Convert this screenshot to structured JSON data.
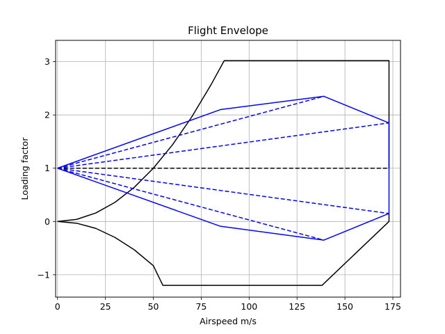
{
  "chart_data": {
    "type": "line",
    "title": "Flight Envelope",
    "xlabel": "Airspeed m/s",
    "ylabel": "Loading factor",
    "xlim": [
      -1,
      179
    ],
    "ylim": [
      -1.42,
      3.4
    ],
    "xticks": [
      0,
      25,
      50,
      75,
      100,
      125,
      150,
      175
    ],
    "yticks": [
      -1,
      0,
      1,
      2,
      3
    ],
    "ytick_labels": [
      "−1",
      "0",
      "1",
      "2",
      "3"
    ],
    "grid": true,
    "series": [
      {
        "color": "#000000",
        "style": "solid",
        "x": [
          0,
          10,
          20,
          30,
          40,
          50,
          60,
          70,
          80,
          87,
          138,
          173,
          173
        ],
        "y": [
          0,
          0.04,
          0.16,
          0.36,
          0.64,
          1.0,
          1.44,
          1.96,
          2.56,
          3.02,
          3.02,
          3.02,
          1.0
        ]
      },
      {
        "color": "#000000",
        "style": "solid",
        "x": [
          0,
          10,
          20,
          30,
          40,
          50,
          55,
          100,
          138,
          173,
          173
        ],
        "y": [
          0,
          -0.033,
          -0.13,
          -0.3,
          -0.53,
          -0.83,
          -1.2,
          -1.2,
          -1.2,
          0,
          0.15
        ]
      },
      {
        "color": "#000000",
        "style": "dashed",
        "x": [
          0,
          173
        ],
        "y": [
          1,
          1
        ]
      },
      {
        "color": "#0000ff",
        "style": "solid",
        "x": [
          0,
          85,
          139,
          173,
          173,
          139,
          85,
          0
        ],
        "y": [
          1,
          2.1,
          2.35,
          1.85,
          0.15,
          -0.35,
          -0.09,
          1
        ]
      },
      {
        "color": "#0000ff",
        "style": "dashed",
        "x": [
          0,
          139,
          0,
          173,
          0,
          173,
          0,
          139
        ],
        "y": [
          1,
          2.35,
          1,
          1.85,
          1,
          0.15,
          1,
          -0.35
        ],
        "segments": true
      }
    ]
  }
}
